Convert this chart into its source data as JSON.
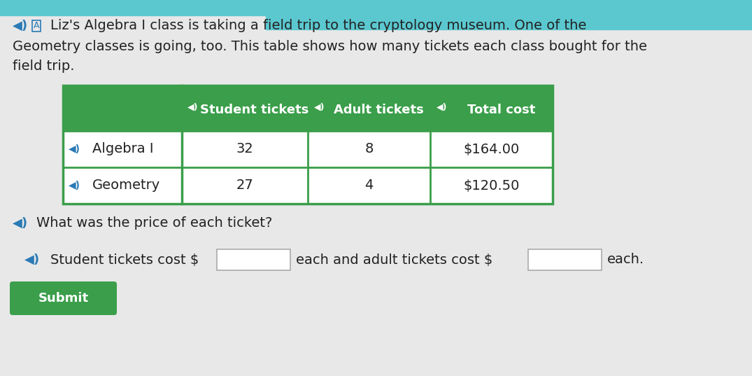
{
  "bg_color": "#e8e8e8",
  "top_bar_color": "#5bc8d0",
  "header_bg": "#3a9e4a",
  "header_text_color": "#ffffff",
  "table_border_color": "#3a9e4a",
  "title_line1": "Liz's Algebra I class is taking a field trip to the cryptology museum. One of the",
  "title_line2": "Geometry classes is going, too. This table shows how many tickets each class bought for the",
  "title_line3": "field trip.",
  "col_headers": [
    "Student tickets",
    "Adult tickets",
    "Total cost"
  ],
  "row_labels": [
    "Algebra I",
    "Geometry"
  ],
  "data": [
    [
      "32",
      "8",
      "$164.00"
    ],
    [
      "27",
      "4",
      "$120.50"
    ]
  ],
  "question_text": "What was the price of each ticket?",
  "answer_text1": "Student tickets cost $",
  "answer_text2": "each and adult tickets cost $",
  "answer_text3": "each.",
  "submit_label": "Submit",
  "submit_bg": "#3a9e4a",
  "submit_text_color": "#ffffff",
  "speaker_color": "#2a7ab5",
  "font_size_body": 14,
  "font_size_table_header": 13,
  "font_size_table_data": 14,
  "font_size_question": 14
}
